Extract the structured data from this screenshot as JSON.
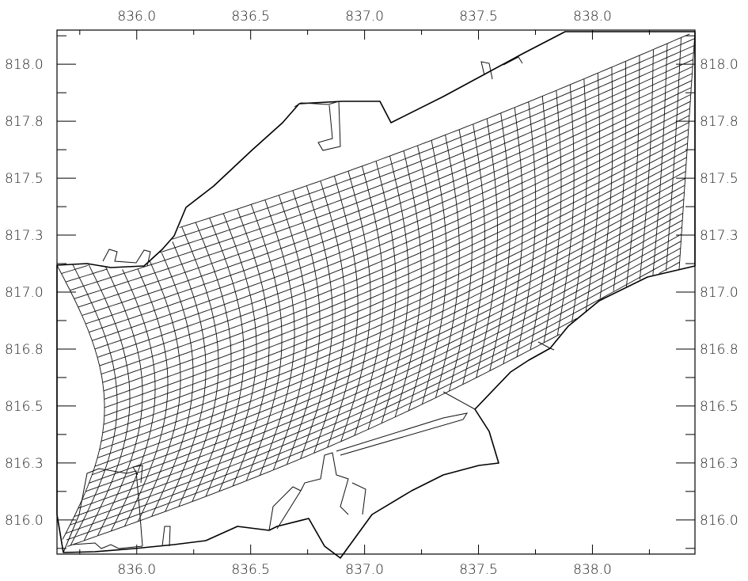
{
  "chart_data": {
    "type": "mesh",
    "title": "",
    "xlabel": "",
    "ylabel": "",
    "xlim": [
      835.65,
      838.45
    ],
    "ylim": [
      815.85,
      818.15
    ],
    "x_ticks_major": [
      "836.0",
      "836.5",
      "837.0",
      "837.5",
      "838.0"
    ],
    "y_ticks_major": [
      "816.0",
      "816.3",
      "816.5",
      "816.8",
      "817.0",
      "817.3",
      "817.5",
      "817.8",
      "818.0"
    ],
    "x_tick_values": [
      836.0,
      836.5,
      837.0,
      837.5,
      838.0
    ],
    "y_tick_values": [
      816.0,
      816.25,
      816.5,
      816.75,
      817.0,
      817.25,
      817.5,
      817.75,
      818.0
    ],
    "grid": false,
    "tick_labels_on_all_sides": true,
    "line_color": "#000000",
    "background": "#ffffff"
  }
}
